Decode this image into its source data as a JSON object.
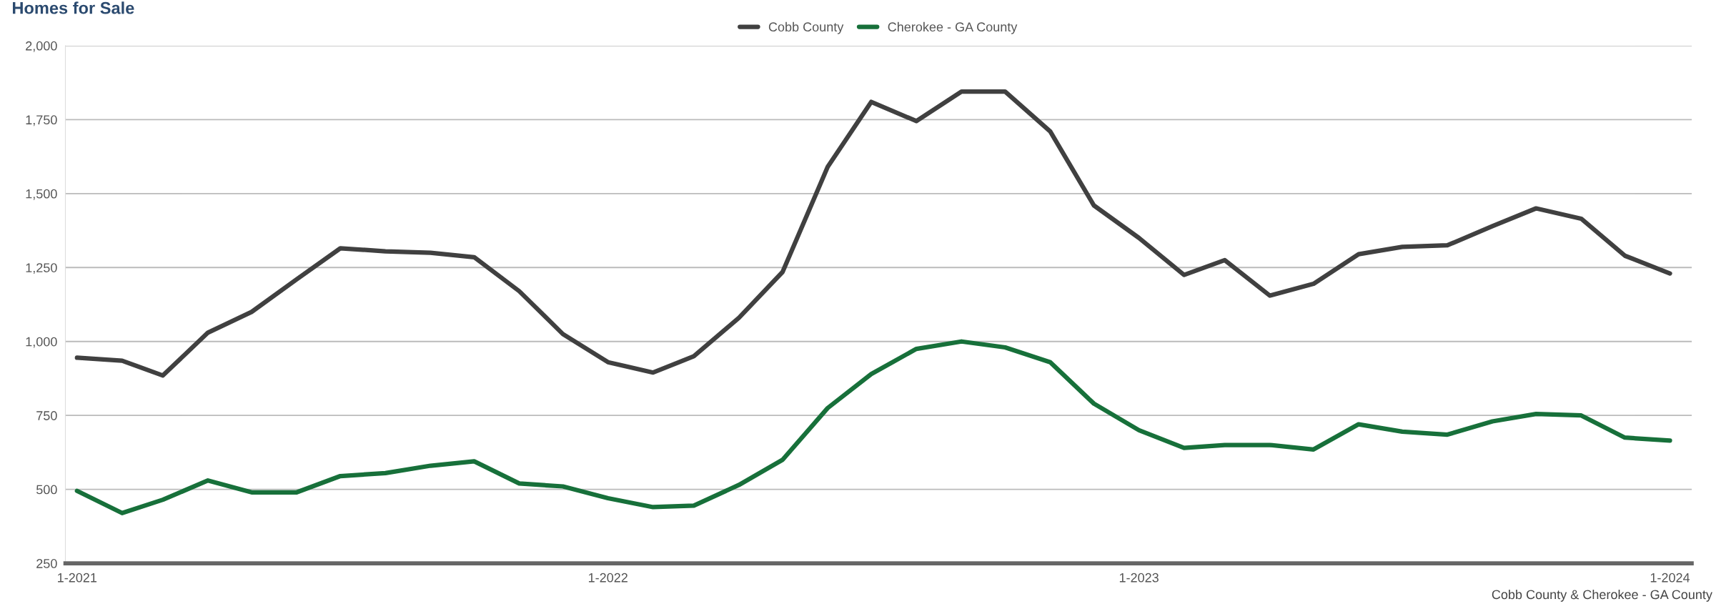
{
  "chart_data": {
    "type": "line",
    "title": "Homes for Sale",
    "x": [
      "2021-01",
      "2021-02",
      "2021-03",
      "2021-04",
      "2021-05",
      "2021-06",
      "2021-07",
      "2021-08",
      "2021-09",
      "2021-10",
      "2021-11",
      "2021-12",
      "2022-01",
      "2022-02",
      "2022-03",
      "2022-04",
      "2022-05",
      "2022-06",
      "2022-07",
      "2022-08",
      "2022-09",
      "2022-10",
      "2022-11",
      "2022-12",
      "2023-01",
      "2023-02",
      "2023-03",
      "2023-04",
      "2023-05",
      "2023-06",
      "2023-07",
      "2023-08",
      "2023-09",
      "2023-10",
      "2023-11",
      "2023-12",
      "2024-01"
    ],
    "series": [
      {
        "name": "Cobb County",
        "color": "#404040",
        "values": [
          945,
          935,
          885,
          1030,
          1100,
          1210,
          1315,
          1305,
          1300,
          1285,
          1170,
          1025,
          930,
          895,
          950,
          1080,
          1235,
          1590,
          1810,
          1745,
          1845,
          1845,
          1710,
          1460,
          1350,
          1225,
          1275,
          1155,
          1195,
          1295,
          1320,
          1325,
          1390,
          1450,
          1415,
          1290,
          1230
        ]
      },
      {
        "name": "Cherokee - GA County",
        "color": "#17703a",
        "values": [
          495,
          420,
          465,
          530,
          490,
          490,
          545,
          555,
          580,
          595,
          520,
          510,
          470,
          440,
          445,
          515,
          600,
          775,
          890,
          975,
          1000,
          980,
          930,
          790,
          700,
          640,
          650,
          650,
          635,
          720,
          695,
          685,
          730,
          755,
          750,
          675,
          665
        ]
      }
    ],
    "xlim": [
      "2020-12-24",
      "2024-01-16"
    ],
    "xticks": [
      {
        "value": "2021-01",
        "label": "1-2021"
      },
      {
        "value": "2022-01",
        "label": "1-2022"
      },
      {
        "value": "2023-01",
        "label": "1-2023"
      },
      {
        "value": "2024-01",
        "label": "1-2024"
      }
    ],
    "ylim": [
      250,
      2000
    ],
    "yticks": [
      {
        "value": 250,
        "label": "250"
      },
      {
        "value": 500,
        "label": "500"
      },
      {
        "value": 750,
        "label": "750"
      },
      {
        "value": 1000,
        "label": "1,000"
      },
      {
        "value": 1250,
        "label": "1,250"
      },
      {
        "value": 1500,
        "label": "1,500"
      },
      {
        "value": 1750,
        "label": "1,750"
      },
      {
        "value": 2000,
        "label": "2,000"
      }
    ],
    "grid": "y",
    "legend": "top",
    "marker": "none",
    "line_style": "solid",
    "annotations": [
      "Cobb County & Cherokee - GA County"
    ]
  }
}
